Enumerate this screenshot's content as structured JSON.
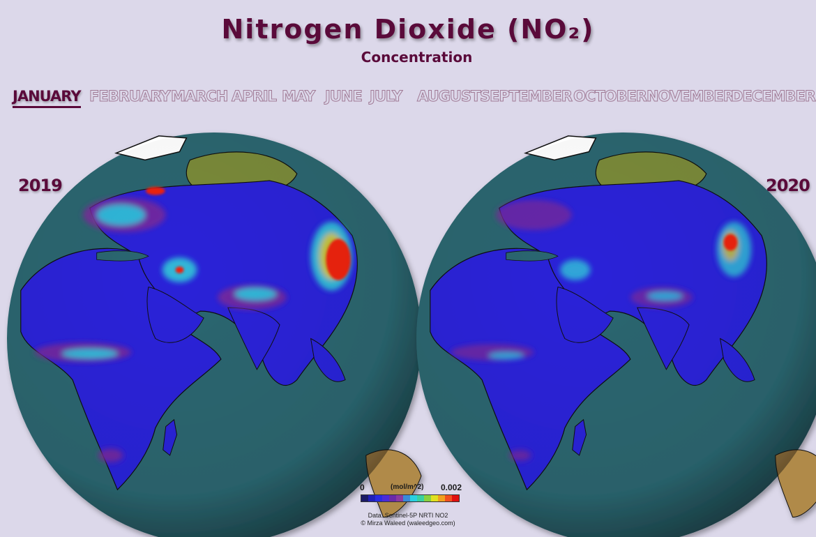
{
  "title": "Nitrogen Dioxide (NO₂)",
  "subtitle": "Concentration",
  "months": [
    {
      "label": "JANUARY",
      "active": true
    },
    {
      "label": "FEBRUARY",
      "active": false
    },
    {
      "label": "MARCH",
      "active": false
    },
    {
      "label": "APRIL",
      "active": false
    },
    {
      "label": "MAY",
      "active": false
    },
    {
      "label": "JUNE",
      "active": false
    },
    {
      "label": "JULY",
      "active": false
    },
    {
      "label": "AUGUST",
      "active": false
    },
    {
      "label": "SEPTEMBER",
      "active": false
    },
    {
      "label": "OCTOBER",
      "active": false
    },
    {
      "label": "NOVEMBER",
      "active": false
    },
    {
      "label": "DECEMBER",
      "active": false
    }
  ],
  "years": {
    "left": "2019",
    "right": "2020"
  },
  "legend": {
    "min": "0",
    "max": "0.002",
    "unit": "(mol/m^2)",
    "colors": [
      "#1a1a66",
      "#1f1fb8",
      "#2a2ae0",
      "#4a2ad8",
      "#6a2aa8",
      "#8a3aa0",
      "#3a8ad8",
      "#2ad0e0",
      "#3ad0a0",
      "#8ad040",
      "#e0e020",
      "#f0a020",
      "#f05020",
      "#e01010"
    ]
  },
  "credits": {
    "source": "Data: Sentinel-5P NRTI NO2",
    "author": "© Mirza Waleed (waleedgeo.com)"
  },
  "map_colors": {
    "ocean": "#2b6670",
    "low_no2": "#2a22d8",
    "mid_no2": "#7a2a9a",
    "high_no2": "#33d0d8",
    "peak_no2": "#ee2010",
    "tundra": "#7a8a3a",
    "ice": "#ffffff"
  }
}
